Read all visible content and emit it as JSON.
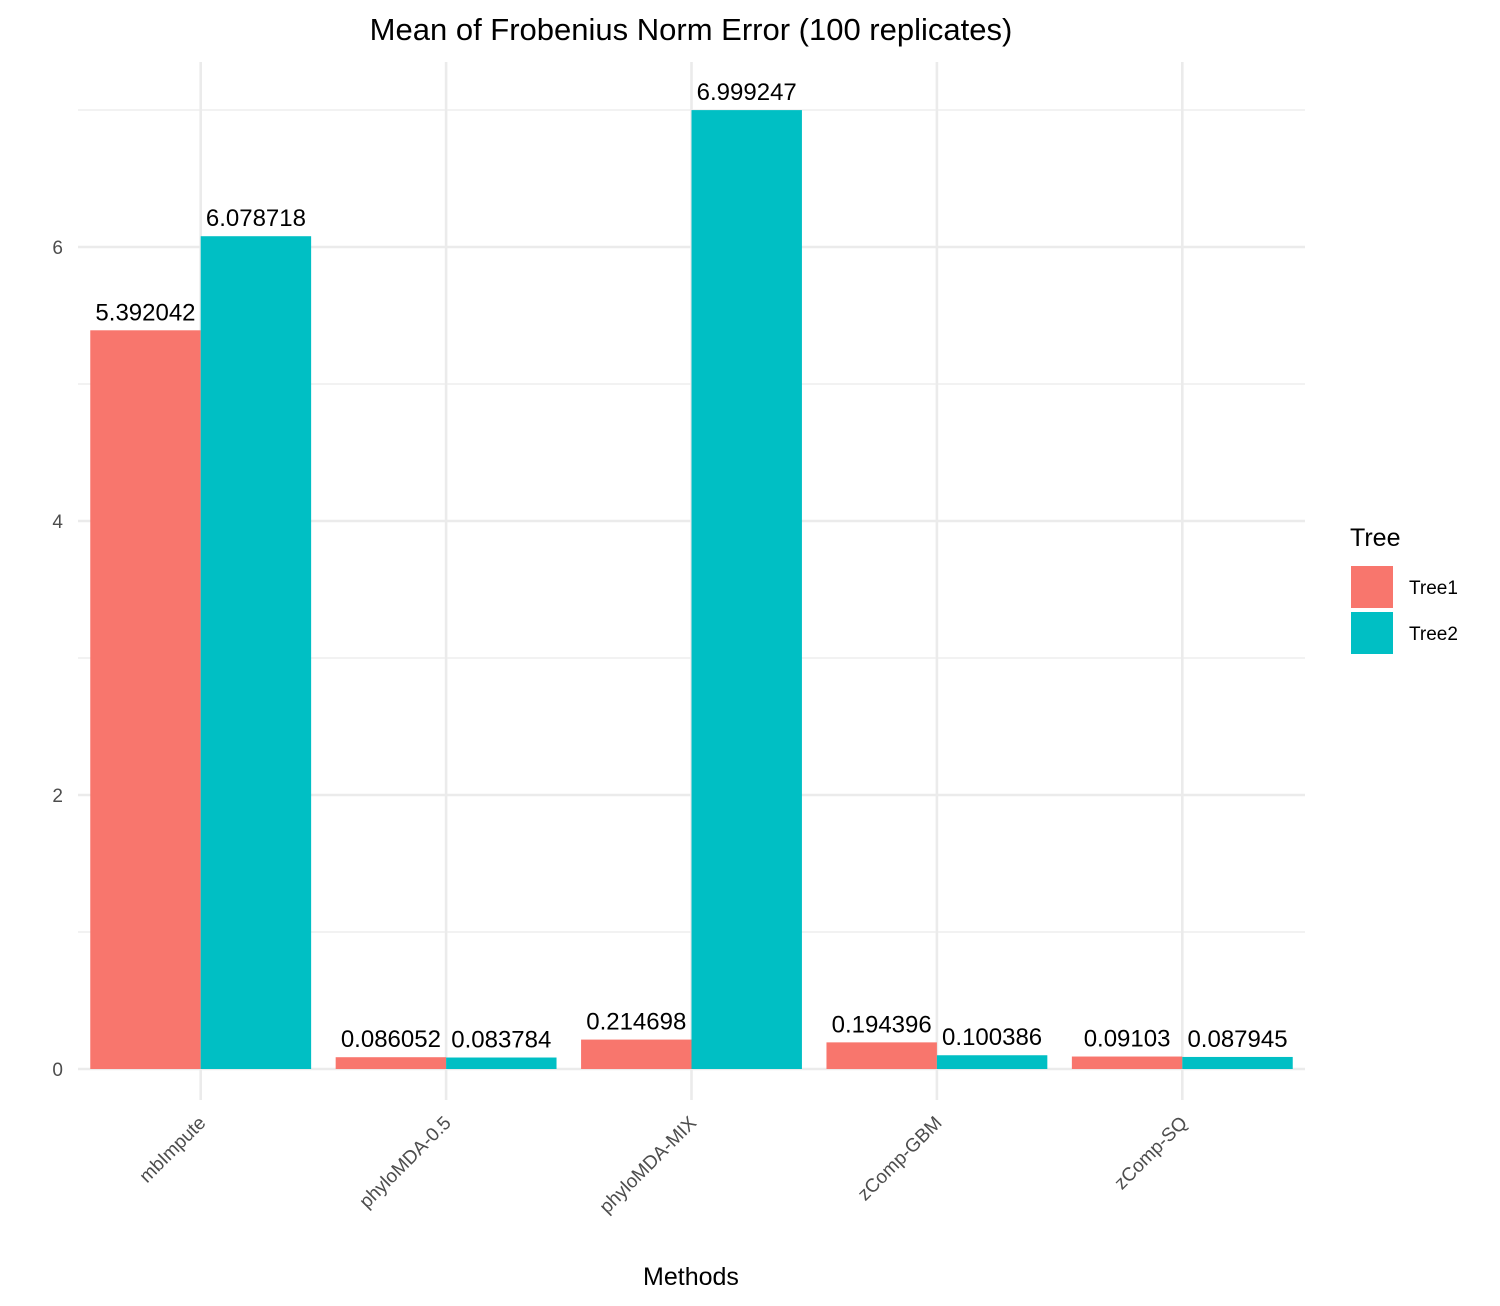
{
  "chart_data": {
    "type": "bar",
    "title": "Mean of Frobenius Norm Error (100 replicates)",
    "xlabel": "Methods",
    "ylabel": "",
    "categories": [
      "mbImpute",
      "phyloMDA-0.5",
      "phyloMDA-MIX",
      "zComp-GBM",
      "zComp-SQ"
    ],
    "series": [
      {
        "name": "Tree1",
        "color": "#F8766D",
        "values": [
          5.392042,
          0.086052,
          0.214698,
          0.194396,
          0.09103
        ],
        "labels": [
          "5.392042",
          "0.086052",
          "0.214698",
          "0.194396",
          "0.09103"
        ]
      },
      {
        "name": "Tree2",
        "color": "#00BFC4",
        "values": [
          6.078718,
          0.083784,
          6.999247,
          0.100386,
          0.087945
        ],
        "labels": [
          "6.078718",
          "0.083784",
          "6.999247",
          "0.100386",
          "0.087945"
        ]
      }
    ],
    "yticks": [
      0,
      2,
      4,
      6
    ],
    "ylim": [
      0,
      7.35
    ],
    "grid": true,
    "legend": {
      "title": "Tree",
      "position": "right"
    },
    "grid_color": "#EBEBEB"
  }
}
